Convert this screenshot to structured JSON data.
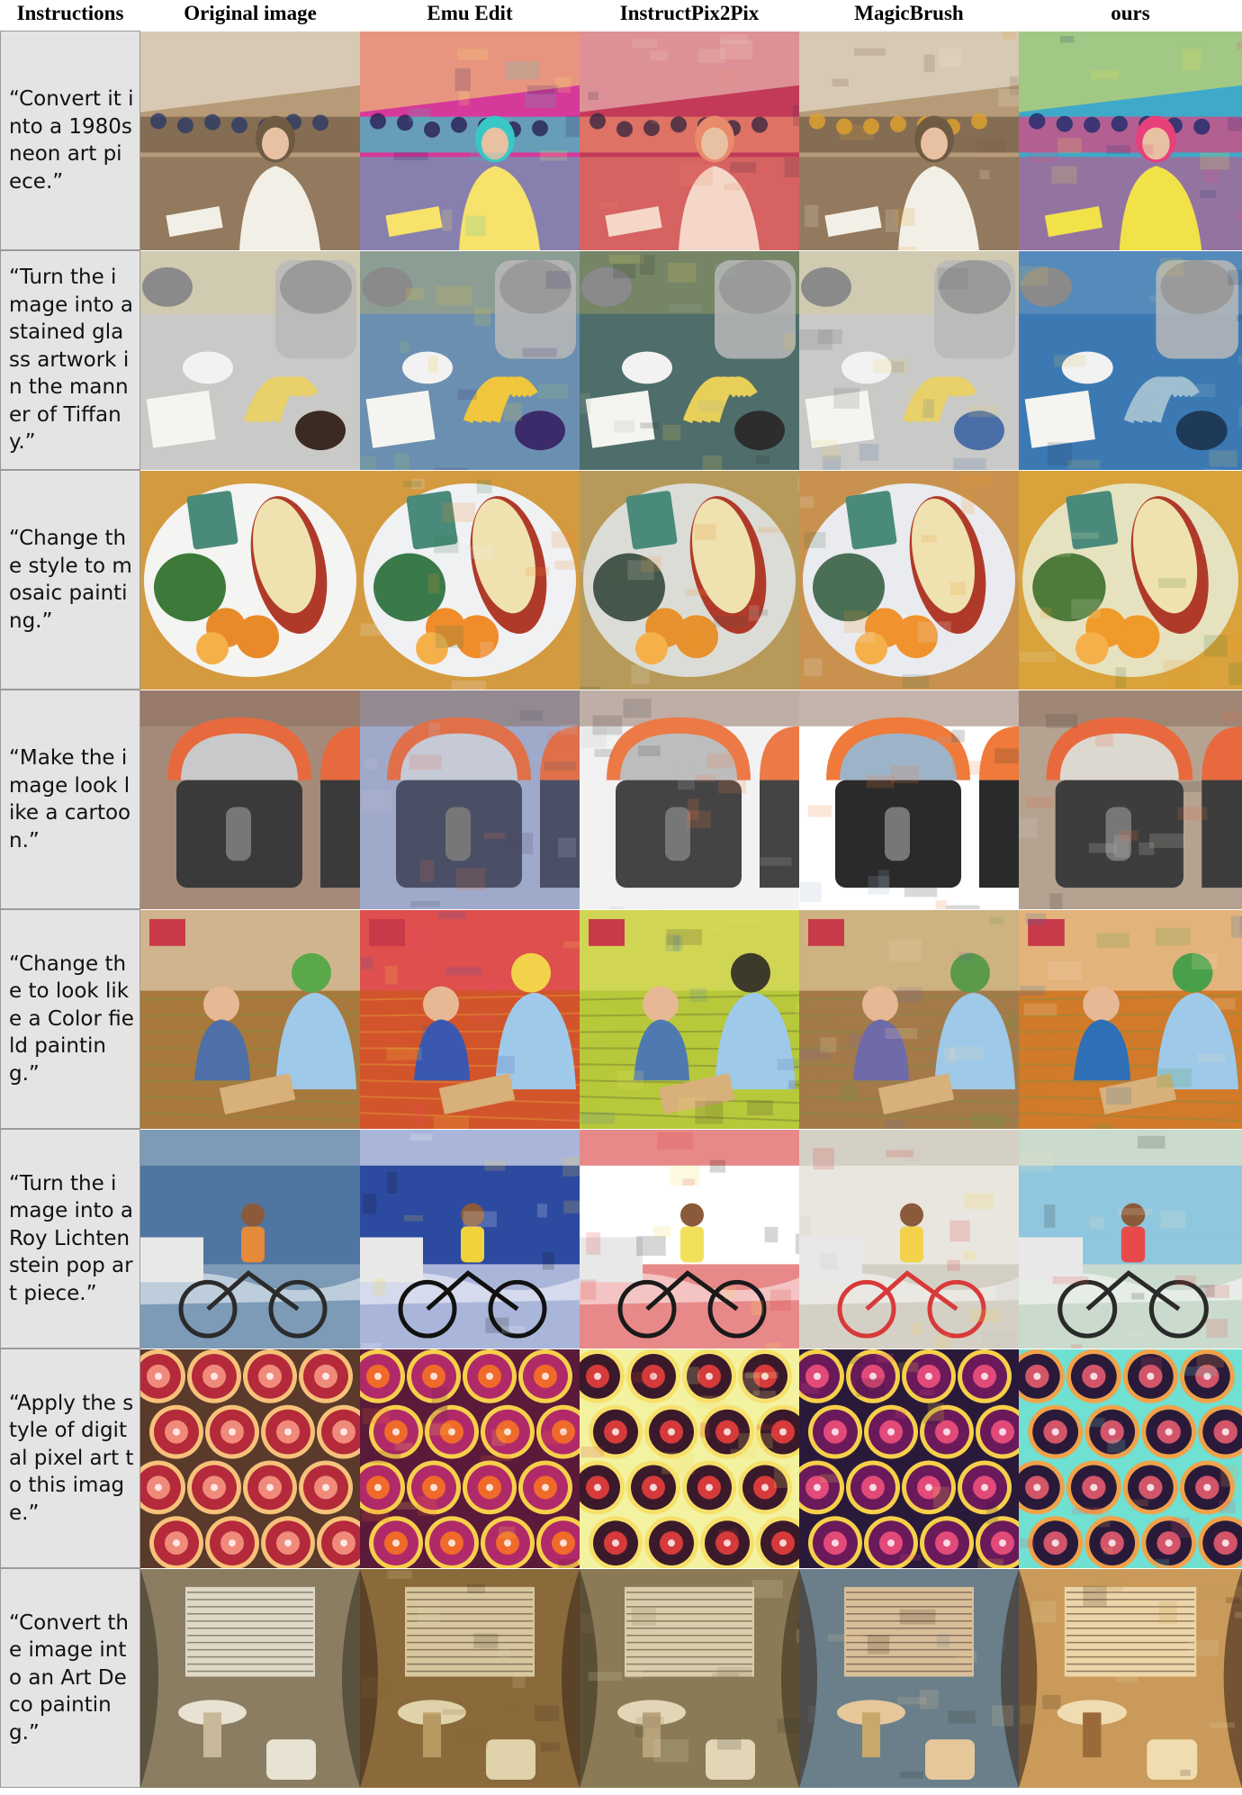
{
  "headers": {
    "instructions": "Instructions",
    "original": "Original image",
    "emu_edit": "Emu Edit",
    "instructpix2pix": "InstructPix2Pix",
    "magicbrush": "MagicBrush",
    "ours": "ours"
  },
  "rows": [
    {
      "instruction": "“Convert it into a 1980s neon art piece.”",
      "scene": "classroom-woman"
    },
    {
      "instruction": "“Turn the image into a stained glass artwork in the manner of Tiffany.”",
      "scene": "kitchen-mixer-bananas"
    },
    {
      "instruction": "“Change the style to mosaic painting.”",
      "scene": "plate-lasagna-oranges"
    },
    {
      "instruction": "“Make the image look like a cartoon.”",
      "scene": "parking-meters"
    },
    {
      "instruction": "“Change the to look like a Color field painting.”",
      "scene": "children-on-floor"
    },
    {
      "instruction": "“Turn the image into a Roy Lichtenstein pop art piece.”",
      "scene": "cyclist-beach"
    },
    {
      "instruction": "“Apply the style of digital pixel art to this image.”",
      "scene": "blood-orange-slices"
    },
    {
      "instruction": "“Convert the image into an Art Deco painting.”",
      "scene": "bathroom-sink"
    }
  ],
  "colors": {
    "instruction_bg": "#e4e4e4",
    "border": "#9a9a9a"
  }
}
